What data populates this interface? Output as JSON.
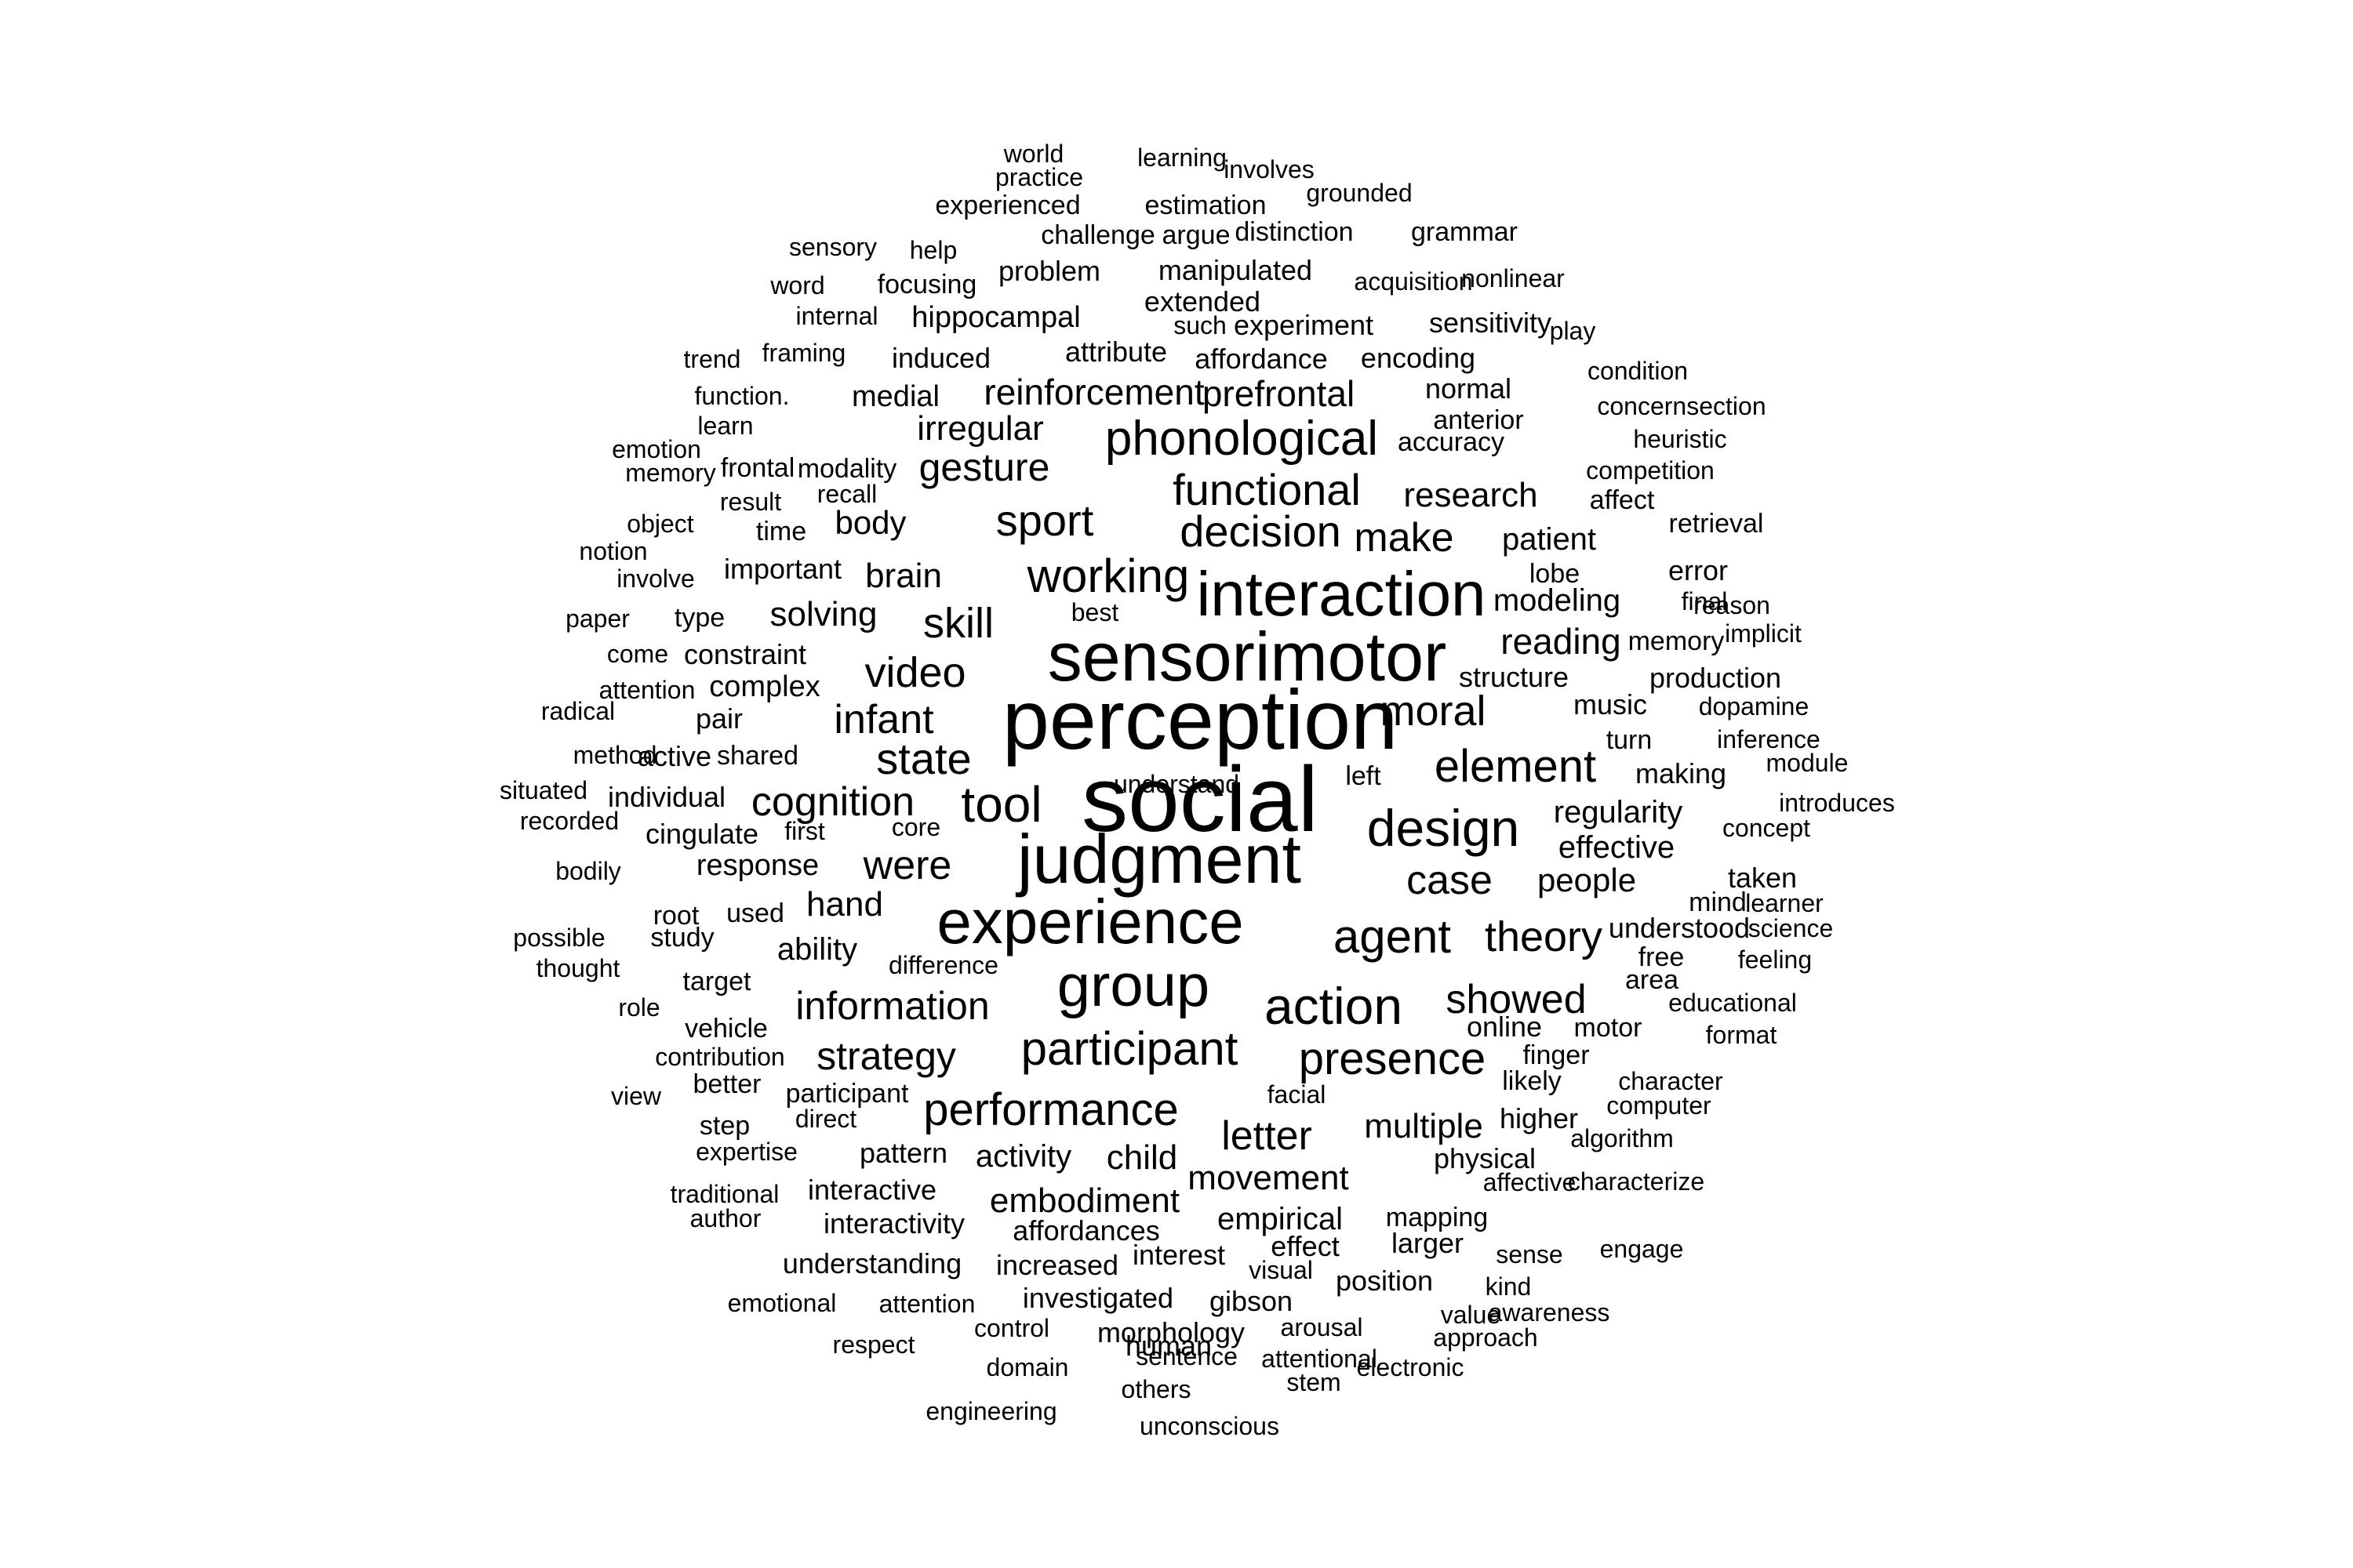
{
  "colors": {
    "background": "#ffffff",
    "text": "#000000"
  },
  "words": [
    {
      "text": "social",
      "weight": 5
    },
    {
      "text": "perception",
      "weight": 5
    },
    {
      "text": "sensorimotor",
      "weight": 4
    },
    {
      "text": "judgment",
      "weight": 4
    },
    {
      "text": "interaction",
      "weight": 4
    },
    {
      "text": "experience",
      "weight": 4
    },
    {
      "text": "group",
      "weight": 4
    },
    {
      "text": "design",
      "weight": 3
    },
    {
      "text": "action",
      "weight": 3
    },
    {
      "text": "phonological",
      "weight": 3
    },
    {
      "text": "functional",
      "weight": 3
    },
    {
      "text": "working",
      "weight": 3
    },
    {
      "text": "decision",
      "weight": 3
    },
    {
      "text": "tool",
      "weight": 3
    },
    {
      "text": "participant",
      "weight": 3
    },
    {
      "text": "agent",
      "weight": 3
    },
    {
      "text": "element",
      "weight": 3
    },
    {
      "text": "presence",
      "weight": 3
    },
    {
      "text": "performance",
      "weight": 3
    },
    {
      "text": "sport",
      "weight": 3
    },
    {
      "text": "make",
      "weight": 3
    },
    {
      "text": "video",
      "weight": 3
    },
    {
      "text": "moral",
      "weight": 3
    },
    {
      "text": "theory",
      "weight": 3
    },
    {
      "text": "skill",
      "weight": 3
    },
    {
      "text": "state",
      "weight": 3
    },
    {
      "text": "case",
      "weight": 3
    },
    {
      "text": "showed",
      "weight": 3
    },
    {
      "text": "infant",
      "weight": 2
    },
    {
      "text": "were",
      "weight": 2
    },
    {
      "text": "information",
      "weight": 2
    },
    {
      "text": "strategy",
      "weight": 2
    },
    {
      "text": "cognition",
      "weight": 2
    },
    {
      "text": "letter",
      "weight": 2
    },
    {
      "text": "gesture",
      "weight": 2
    },
    {
      "text": "reading",
      "weight": 2
    },
    {
      "text": "reinforcement",
      "weight": 2
    },
    {
      "text": "prefrontal",
      "weight": 2
    },
    {
      "text": "research",
      "weight": 2
    },
    {
      "text": "embodiment",
      "weight": 2
    },
    {
      "text": "movement",
      "weight": 2
    },
    {
      "text": "multiple",
      "weight": 2
    },
    {
      "text": "people",
      "weight": 2
    },
    {
      "text": "regularity",
      "weight": 2
    },
    {
      "text": "hand",
      "weight": 2
    },
    {
      "text": "child",
      "weight": 2
    },
    {
      "text": "brain",
      "weight": 2
    },
    {
      "text": "irregular",
      "weight": 2
    },
    {
      "text": "solving",
      "weight": 2
    },
    {
      "text": "effective",
      "weight": 2
    },
    {
      "text": "patient",
      "weight": 2
    },
    {
      "text": "ability",
      "weight": 2
    },
    {
      "text": "body",
      "weight": 2
    },
    {
      "text": "activity",
      "weight": 2
    },
    {
      "text": "modeling",
      "weight": 2
    },
    {
      "text": "empirical",
      "weight": 2
    },
    {
      "text": "response",
      "weight": 2
    },
    {
      "text": "affordances",
      "weight": 1
    },
    {
      "text": "increased",
      "weight": 1
    },
    {
      "text": "interactive",
      "weight": 1
    },
    {
      "text": "interactivity",
      "weight": 1
    },
    {
      "text": "understanding",
      "weight": 1
    },
    {
      "text": "investigated",
      "weight": 1
    },
    {
      "text": "morphology",
      "weight": 1
    },
    {
      "text": "human",
      "weight": 1
    },
    {
      "text": "pattern",
      "weight": 1
    },
    {
      "text": "music",
      "weight": 1
    },
    {
      "text": "structure",
      "weight": 1
    },
    {
      "text": "production",
      "weight": 1
    },
    {
      "text": "error",
      "weight": 1
    },
    {
      "text": "online",
      "weight": 1
    },
    {
      "text": "higher",
      "weight": 1
    },
    {
      "text": "physical",
      "weight": 1
    },
    {
      "text": "position",
      "weight": 1
    },
    {
      "text": "larger",
      "weight": 1
    },
    {
      "text": "gibson",
      "weight": 1
    },
    {
      "text": "effect",
      "weight": 1
    },
    {
      "text": "interest",
      "weight": 1
    },
    {
      "text": "mapping",
      "weight": 1
    },
    {
      "text": "making",
      "weight": 1
    },
    {
      "text": "understood",
      "weight": 1
    },
    {
      "text": "taken",
      "weight": 1
    },
    {
      "text": "mind",
      "weight": 1
    },
    {
      "text": "turn",
      "weight": 1
    },
    {
      "text": "memory",
      "weight": 1
    },
    {
      "text": "retrieval",
      "weight": 1
    },
    {
      "text": "affect",
      "weight": 1
    },
    {
      "text": "lobe",
      "weight": 1
    },
    {
      "text": "left",
      "weight": 1
    },
    {
      "text": "motor",
      "weight": 1
    },
    {
      "text": "finger",
      "weight": 1
    },
    {
      "text": "likely",
      "weight": 1
    },
    {
      "text": "area",
      "weight": 1
    },
    {
      "text": "free",
      "weight": 1
    },
    {
      "text": "used",
      "weight": 1
    },
    {
      "text": "root",
      "weight": 1
    },
    {
      "text": "study",
      "weight": 1
    },
    {
      "text": "target",
      "weight": 1
    },
    {
      "text": "vehicle",
      "weight": 1
    },
    {
      "text": "better",
      "weight": 1
    },
    {
      "text": "participant",
      "weight": 1
    },
    {
      "text": "step",
      "weight": 1
    },
    {
      "text": "complex",
      "weight": 1
    },
    {
      "text": "constraint",
      "weight": 1
    },
    {
      "text": "pair",
      "weight": 1
    },
    {
      "text": "active",
      "weight": 1
    },
    {
      "text": "shared",
      "weight": 1
    },
    {
      "text": "individual",
      "weight": 1
    },
    {
      "text": "cingulate",
      "weight": 1
    },
    {
      "text": "important",
      "weight": 1
    },
    {
      "text": "time",
      "weight": 1
    },
    {
      "text": "type",
      "weight": 1
    },
    {
      "text": "frontal",
      "weight": 1
    },
    {
      "text": "modality",
      "weight": 1
    },
    {
      "text": "medial",
      "weight": 1
    },
    {
      "text": "induced",
      "weight": 1
    },
    {
      "text": "attribute",
      "weight": 1
    },
    {
      "text": "affordance",
      "weight": 1
    },
    {
      "text": "encoding",
      "weight": 1
    },
    {
      "text": "normal",
      "weight": 1
    },
    {
      "text": "anterior",
      "weight": 1
    },
    {
      "text": "accuracy",
      "weight": 1
    },
    {
      "text": "hippocampal",
      "weight": 1
    },
    {
      "text": "experiment",
      "weight": 1
    },
    {
      "text": "extended",
      "weight": 1
    },
    {
      "text": "such",
      "weight": 1
    },
    {
      "text": "sensitivity",
      "weight": 1
    },
    {
      "text": "manipulated",
      "weight": 1
    },
    {
      "text": "problem",
      "weight": 1
    },
    {
      "text": "focusing",
      "weight": 1
    },
    {
      "text": "challenge",
      "weight": 1
    },
    {
      "text": "argue",
      "weight": 1
    },
    {
      "text": "distinction",
      "weight": 1
    },
    {
      "text": "grammar",
      "weight": 1
    },
    {
      "text": "estimation",
      "weight": 1
    },
    {
      "text": "experienced",
      "weight": 1
    },
    {
      "text": "practice",
      "weight": 1
    },
    {
      "text": "world",
      "weight": 1
    },
    {
      "text": "learning",
      "weight": 1
    },
    {
      "text": "involves",
      "weight": 1
    },
    {
      "text": "grounded",
      "weight": 1
    },
    {
      "text": "sensory",
      "weight": 1
    },
    {
      "text": "help",
      "weight": 1
    },
    {
      "text": "word",
      "weight": 1
    },
    {
      "text": "acquisition",
      "weight": 1
    },
    {
      "text": "nonlinear",
      "weight": 1
    },
    {
      "text": "internal",
      "weight": 1
    },
    {
      "text": "play",
      "weight": 1
    },
    {
      "text": "trend",
      "weight": 1
    },
    {
      "text": "framing",
      "weight": 1
    },
    {
      "text": "condition",
      "weight": 1
    },
    {
      "text": "function.",
      "weight": 1
    },
    {
      "text": "concernsection",
      "weight": 1
    },
    {
      "text": "learn",
      "weight": 1
    },
    {
      "text": "heuristic",
      "weight": 1
    },
    {
      "text": "emotion",
      "weight": 1
    },
    {
      "text": "memory",
      "weight": 1
    },
    {
      "text": "competition",
      "weight": 1
    },
    {
      "text": "result",
      "weight": 1
    },
    {
      "text": "recall",
      "weight": 1
    },
    {
      "text": "object",
      "weight": 1
    },
    {
      "text": "notion",
      "weight": 1
    },
    {
      "text": "involve",
      "weight": 1
    },
    {
      "text": "paper",
      "weight": 1
    },
    {
      "text": "best",
      "weight": 1
    },
    {
      "text": "final",
      "weight": 1
    },
    {
      "text": "reason",
      "weight": 1
    },
    {
      "text": "implicit",
      "weight": 1
    },
    {
      "text": "come",
      "weight": 1
    },
    {
      "text": "attention",
      "weight": 1
    },
    {
      "text": "radical",
      "weight": 1
    },
    {
      "text": "dopamine",
      "weight": 1
    },
    {
      "text": "method",
      "weight": 1
    },
    {
      "text": "inference",
      "weight": 1
    },
    {
      "text": "module",
      "weight": 1
    },
    {
      "text": "situated",
      "weight": 1
    },
    {
      "text": "recorded",
      "weight": 1
    },
    {
      "text": "first",
      "weight": 1
    },
    {
      "text": "core",
      "weight": 1
    },
    {
      "text": "introduces",
      "weight": 1
    },
    {
      "text": "concept",
      "weight": 1
    },
    {
      "text": "bodily",
      "weight": 1
    },
    {
      "text": "learner",
      "weight": 1
    },
    {
      "text": "possible",
      "weight": 1
    },
    {
      "text": "science",
      "weight": 1
    },
    {
      "text": "difference",
      "weight": 1
    },
    {
      "text": "feeling",
      "weight": 1
    },
    {
      "text": "thought",
      "weight": 1
    },
    {
      "text": "educational",
      "weight": 1
    },
    {
      "text": "role",
      "weight": 1
    },
    {
      "text": "format",
      "weight": 1
    },
    {
      "text": "contribution",
      "weight": 1
    },
    {
      "text": "facial",
      "weight": 1
    },
    {
      "text": "character",
      "weight": 1
    },
    {
      "text": "view",
      "weight": 1
    },
    {
      "text": "computer",
      "weight": 1
    },
    {
      "text": "direct",
      "weight": 1
    },
    {
      "text": "algorithm",
      "weight": 1
    },
    {
      "text": "expertise",
      "weight": 1
    },
    {
      "text": "affective",
      "weight": 1
    },
    {
      "text": "characterize",
      "weight": 1
    },
    {
      "text": "traditional",
      "weight": 1
    },
    {
      "text": "author",
      "weight": 1
    },
    {
      "text": "sense",
      "weight": 1
    },
    {
      "text": "engage",
      "weight": 1
    },
    {
      "text": "visual",
      "weight": 1
    },
    {
      "text": "kind",
      "weight": 1
    },
    {
      "text": "emotional",
      "weight": 1
    },
    {
      "text": "attention",
      "weight": 1
    },
    {
      "text": "awareness",
      "weight": 1
    },
    {
      "text": "value",
      "weight": 1
    },
    {
      "text": "control",
      "weight": 1
    },
    {
      "text": "arousal",
      "weight": 1
    },
    {
      "text": "approach",
      "weight": 1
    },
    {
      "text": "respect",
      "weight": 1
    },
    {
      "text": "sentence",
      "weight": 1
    },
    {
      "text": "attentional",
      "weight": 1
    },
    {
      "text": "domain",
      "weight": 1
    },
    {
      "text": "electronic",
      "weight": 1
    },
    {
      "text": "stem",
      "weight": 1
    },
    {
      "text": "others",
      "weight": 1
    },
    {
      "text": "engineering",
      "weight": 1
    },
    {
      "text": "unconscious",
      "weight": 1
    },
    {
      "text": "understand",
      "weight": 1
    }
  ]
}
